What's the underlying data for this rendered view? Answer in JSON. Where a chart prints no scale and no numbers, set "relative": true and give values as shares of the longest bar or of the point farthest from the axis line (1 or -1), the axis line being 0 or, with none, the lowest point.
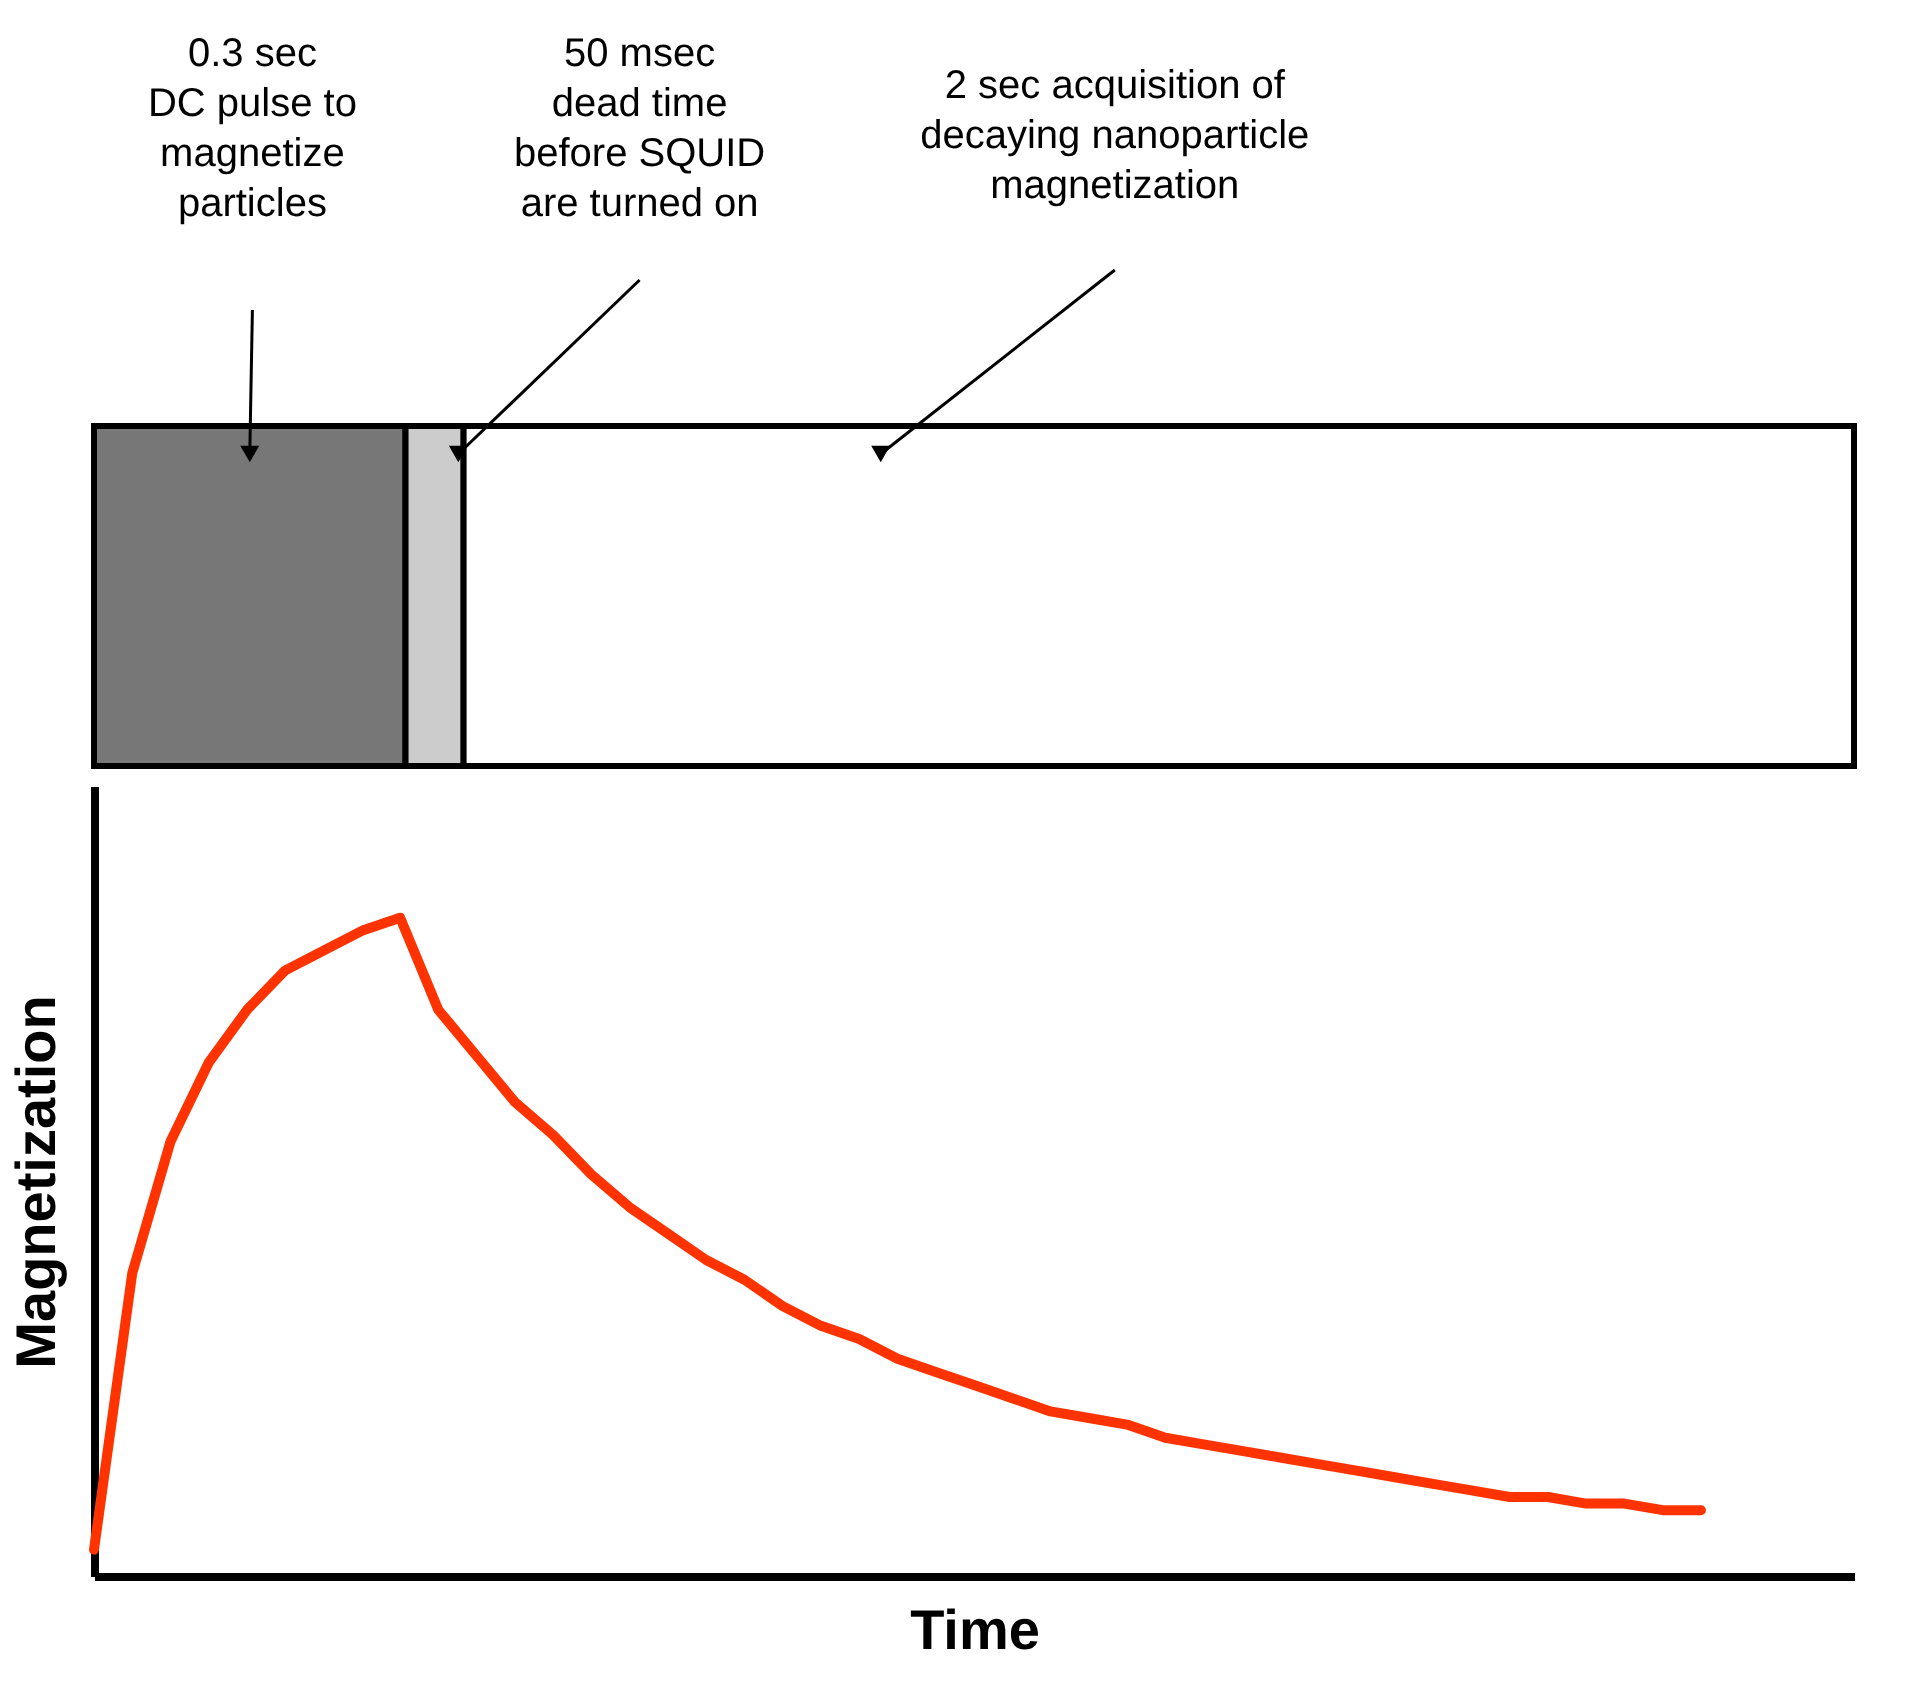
{
  "chart_data": [
    {
      "type": "bar",
      "orientation": "horizontal",
      "stacked": true,
      "relative": true,
      "categories": [
        null
      ],
      "series": [
        {
          "color": "#777777",
          "values": [
            0.177
          ]
        },
        {
          "color": "#cccccc",
          "values": [
            0.033
          ]
        },
        {
          "color": "#ffffff",
          "values": [
            0.79
          ]
        }
      ],
      "annotations": [
        "0.3 sec\nDC pulse to\nmagnetize\nparticles",
        "50 msec\ndead time\nbefore SQUID\nare turned on",
        "2 sec acquisition of\ndecaying nanoparticle\nmagnetization"
      ]
    },
    {
      "type": "line",
      "relative": true,
      "xlabel": "Time",
      "ylabel": "Magnetization",
      "categories": [
        null,
        null,
        null,
        null,
        null,
        null,
        null,
        null,
        null,
        null,
        null,
        null,
        null,
        null,
        null,
        null,
        null,
        null,
        null,
        null,
        null,
        null,
        null,
        null,
        null,
        null,
        null,
        null,
        null,
        null,
        null,
        null,
        null,
        null,
        null,
        null,
        null,
        null,
        null,
        null,
        null,
        null,
        null,
        null,
        null,
        null,
        null
      ],
      "series": [
        {
          "color": "#ff3300",
          "values": [
            0.04,
            0.46,
            0.66,
            0.78,
            0.86,
            0.92,
            0.95,
            0.98,
            1.0,
            0.86,
            0.79,
            0.72,
            0.67,
            0.61,
            0.56,
            0.52,
            0.48,
            0.45,
            0.41,
            0.38,
            0.36,
            0.33,
            0.31,
            0.29,
            0.27,
            0.25,
            0.24,
            0.23,
            0.21,
            0.2,
            0.19,
            0.18,
            0.17,
            0.16,
            0.15,
            0.14,
            0.13,
            0.12,
            0.12,
            0.11,
            0.11,
            0.1,
            0.1,
            null,
            null,
            null,
            null
          ]
        }
      ]
    }
  ]
}
